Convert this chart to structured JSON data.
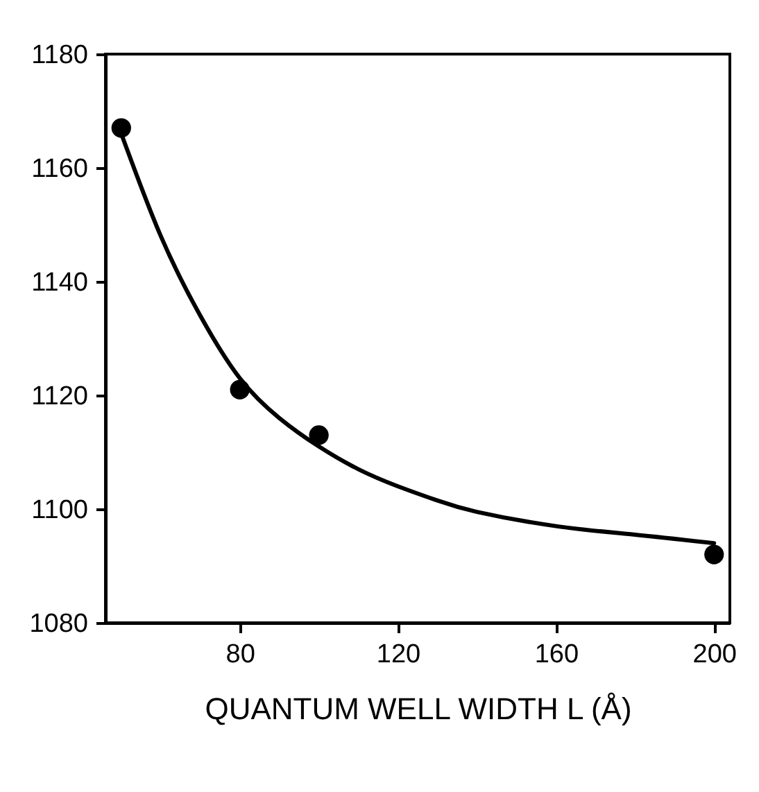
{
  "chart_data": {
    "type": "scatter",
    "xlabel": "QUANTUM WELL WIDTH L  (Å)",
    "xlim": [
      46,
      204
    ],
    "ylim": [
      1080,
      1180
    ],
    "xticks": [
      80,
      120,
      160,
      200
    ],
    "yticks": [
      1080,
      1100,
      1120,
      1140,
      1160,
      1180
    ],
    "grid": false,
    "marker": "circle",
    "series": [
      {
        "color": "#000000",
        "x": [
          50,
          80,
          100,
          200
        ],
        "values": [
          1167,
          1121,
          1113,
          1092
        ]
      },
      {
        "type": "line",
        "color": "#000000",
        "marker": "none",
        "x": [
          50,
          60,
          70,
          80,
          90,
          100,
          110,
          120,
          130,
          140,
          160,
          180,
          200
        ],
        "values": [
          1166,
          1148,
          1134,
          1123,
          1116,
          1111,
          1107,
          1104,
          1101.5,
          1099.5,
          1097,
          1095.5,
          1094
        ]
      }
    ]
  }
}
